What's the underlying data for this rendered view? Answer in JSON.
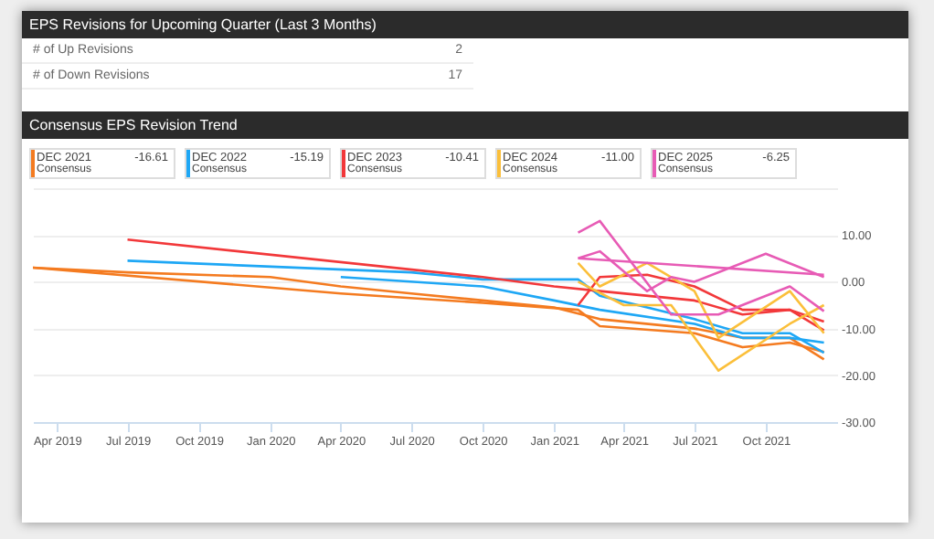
{
  "chart_data": {
    "type": "line",
    "title": "Consensus EPS Revision Trend",
    "annotations": [
      "EPS Revisions for Upcoming Quarter (Last 3 Months)",
      "# of Up Revisions",
      "2",
      "# of Down Revisions",
      "17",
      "-16.61",
      "-15.19",
      "-10.41",
      "-11.00",
      "-6.25"
    ],
    "legend_title": "Consensus",
    "legend": "top left",
    "grid": "y",
    "marker": "none",
    "line_style": "solid",
    "xlim": [
      "2019-03-01",
      "2022-01-01"
    ],
    "xticks": [
      {
        "value": "2019-04-01",
        "label": "Apr 2019"
      },
      {
        "value": "2019-07-01",
        "label": "Jul 2019"
      },
      {
        "value": "2019-10-01",
        "label": "Oct 2019"
      },
      {
        "value": "2020-01-01",
        "label": "Jan 2020"
      },
      {
        "value": "2020-04-01",
        "label": "Apr 2020"
      },
      {
        "value": "2020-07-01",
        "label": "Jul 2020"
      },
      {
        "value": "2020-10-01",
        "label": "Oct 2020"
      },
      {
        "value": "2021-01-01",
        "label": "Jan 2021"
      },
      {
        "value": "2021-04-01",
        "label": "Apr 2021"
      },
      {
        "value": "2021-07-01",
        "label": "Jul 2021"
      },
      {
        "value": "2021-10-01",
        "label": "Oct 2021"
      }
    ],
    "ylim": [
      -30,
      20
    ],
    "yticks": [
      {
        "value": -30,
        "label": "-30.00"
      },
      {
        "value": -20,
        "label": "-20.00"
      },
      {
        "value": -10,
        "label": "-10.00"
      },
      {
        "value": 0,
        "label": "0.00"
      },
      {
        "value": 10,
        "label": "10.00"
      },
      {
        "value": 20,
        "label": null
      }
    ],
    "series": [
      {
        "name": "DEC 2021",
        "color": "#f47b20",
        "x": [
          "2019-03-01",
          "2019-07-01",
          "2020-01-01",
          "2020-04-01",
          "2020-07-01",
          "2020-10-01",
          "2021-01-01",
          "2021-03-01",
          "2021-07-01",
          "2021-09-01",
          "2021-11-01",
          "2021-12-15"
        ],
        "values": [
          3,
          2,
          1,
          -1,
          -2.5,
          -4,
          -5.5,
          -8,
          -10,
          -12,
          -12,
          -16.6
        ]
      },
      {
        "color": "#f47b20",
        "x": [
          "2019-03-01",
          "2020-04-01",
          "2020-10-01",
          "2021-02-01",
          "2021-03-01",
          "2021-07-01",
          "2021-09-01",
          "2021-11-01",
          "2021-12-15"
        ],
        "values": [
          3,
          -2.5,
          -4.5,
          -6,
          -9.5,
          -11,
          -14,
          -13,
          -15
        ]
      },
      {
        "name": "DEC 2022",
        "color": "#1ea7f5",
        "x": [
          "2019-07-01",
          "2020-07-01",
          "2020-10-01",
          "2021-02-01",
          "2021-03-01",
          "2021-07-01",
          "2021-09-01",
          "2021-11-01",
          "2021-12-15"
        ],
        "values": [
          4.5,
          2,
          0.5,
          0.5,
          -3,
          -8,
          -11,
          -11,
          -15.2
        ]
      },
      {
        "color": "#1ea7f5",
        "x": [
          "2020-04-01",
          "2020-10-01",
          "2021-01-01",
          "2021-03-01",
          "2021-07-01",
          "2021-09-01",
          "2021-11-01",
          "2021-12-15"
        ],
        "values": [
          1,
          -1,
          -4,
          -6,
          -9,
          -12,
          -12,
          -13
        ]
      },
      {
        "name": "DEC 2023",
        "color": "#f2383a",
        "x": [
          "2019-07-01",
          "2020-10-01",
          "2021-01-01",
          "2021-03-01",
          "2021-07-01",
          "2021-09-01",
          "2021-11-01",
          "2021-12-15"
        ],
        "values": [
          9,
          1,
          -1,
          -2,
          -4,
          -7,
          -6,
          -10.4
        ]
      },
      {
        "color": "#f2383a",
        "x": [
          "2021-02-01",
          "2021-03-01",
          "2021-05-01",
          "2021-07-01",
          "2021-09-01",
          "2021-11-01",
          "2021-12-15"
        ],
        "values": [
          -5,
          1,
          1.5,
          -1,
          -6,
          -6,
          -8.5
        ]
      },
      {
        "name": "DEC 2024",
        "color": "#fbbf3a",
        "x": [
          "2021-02-01",
          "2021-03-01",
          "2021-05-01",
          "2021-07-01",
          "2021-08-01",
          "2021-11-01",
          "2021-12-15"
        ],
        "values": [
          4,
          -1,
          4,
          -2,
          -12,
          -2,
          -11
        ]
      },
      {
        "color": "#fbbf3a",
        "x": [
          "2021-02-01",
          "2021-04-01",
          "2021-06-01",
          "2021-08-01",
          "2021-11-01",
          "2021-12-15"
        ],
        "values": [
          0,
          -5,
          -5,
          -19,
          -9,
          -5
        ]
      },
      {
        "name": "DEC 2025",
        "color": "#e75bb5",
        "x": [
          "2021-02-01",
          "2021-03-01",
          "2021-06-01",
          "2021-08-01",
          "2021-11-01",
          "2021-12-15"
        ],
        "values": [
          10.5,
          13,
          -7,
          -7,
          -1,
          -6.3
        ]
      },
      {
        "color": "#e75bb5",
        "x": [
          "2021-02-01",
          "2021-03-01",
          "2021-05-01",
          "2021-06-01",
          "2021-07-01",
          "2021-10-01",
          "2021-12-15"
        ],
        "values": [
          5,
          6.5,
          -2,
          1,
          0,
          6,
          1
        ]
      },
      {
        "color": "#e75bb5",
        "x": [
          "2021-02-01",
          "2021-12-15"
        ],
        "values": [
          5,
          1.5
        ]
      }
    ]
  }
}
